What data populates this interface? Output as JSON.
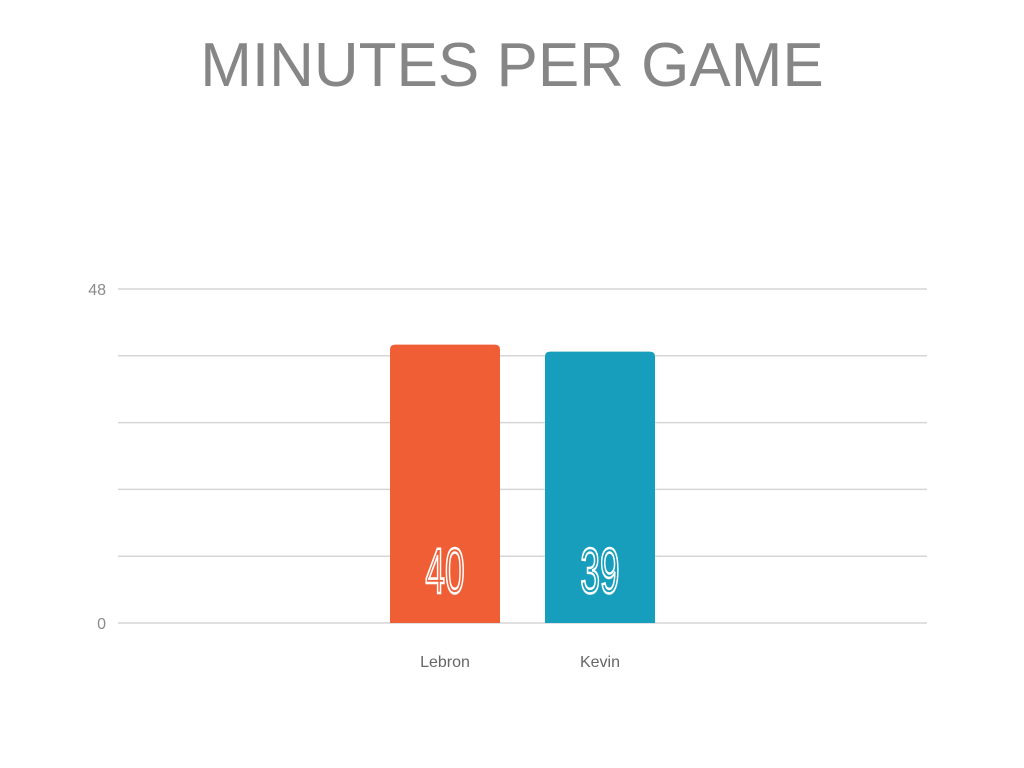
{
  "chart_data": {
    "type": "bar",
    "title": "MINUTES PER GAME",
    "categories": [
      "Lebron",
      "Kevin"
    ],
    "values": [
      40,
      39
    ],
    "data_labels": [
      "40",
      "39"
    ],
    "colors": [
      "#EF5E35",
      "#169EBC"
    ],
    "ylim": [
      0,
      48
    ],
    "y_tick_labels": [
      "0",
      "48"
    ],
    "gridlines": 5,
    "grid": true,
    "xlabel": "",
    "ylabel": ""
  }
}
